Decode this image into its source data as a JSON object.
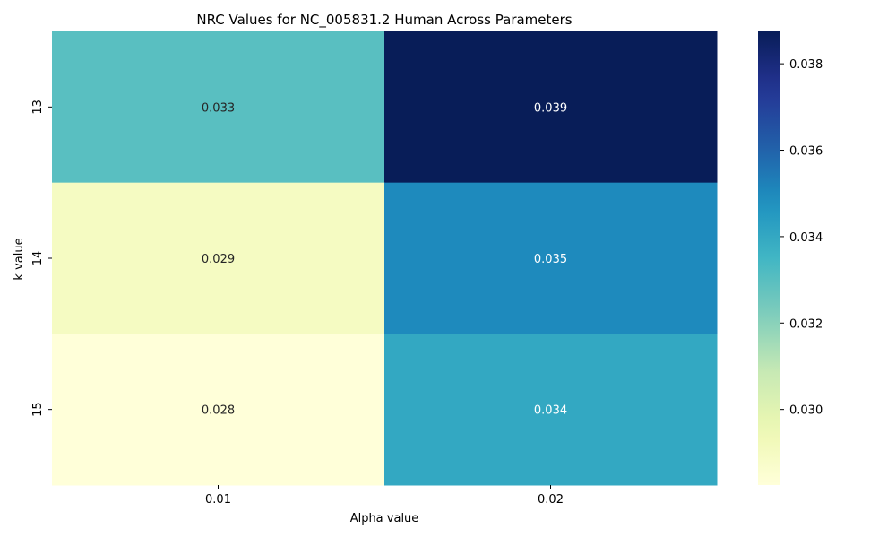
{
  "chart_data": {
    "type": "heatmap",
    "title": "NRC Values for NC_005831.2 Human Across Parameters",
    "xlabel": "Alpha value",
    "ylabel": "k value",
    "x_categories": [
      "0.01",
      "0.02"
    ],
    "y_categories": [
      "13",
      "14",
      "15"
    ],
    "values": [
      [
        0.033,
        0.039
      ],
      [
        0.029,
        0.035
      ],
      [
        0.028,
        0.034
      ]
    ],
    "value_labels": [
      [
        "0.033",
        "0.039"
      ],
      [
        "0.029",
        "0.035"
      ],
      [
        "0.028",
        "0.034"
      ]
    ],
    "colormap": "YlGnBu",
    "colorbar": {
      "range": [
        0.02825,
        0.03875
      ],
      "ticks": [
        0.03,
        0.032,
        0.034,
        0.036,
        0.038
      ],
      "tick_labels": [
        "0.030",
        "0.032",
        "0.034",
        "0.036",
        "0.038"
      ]
    }
  }
}
